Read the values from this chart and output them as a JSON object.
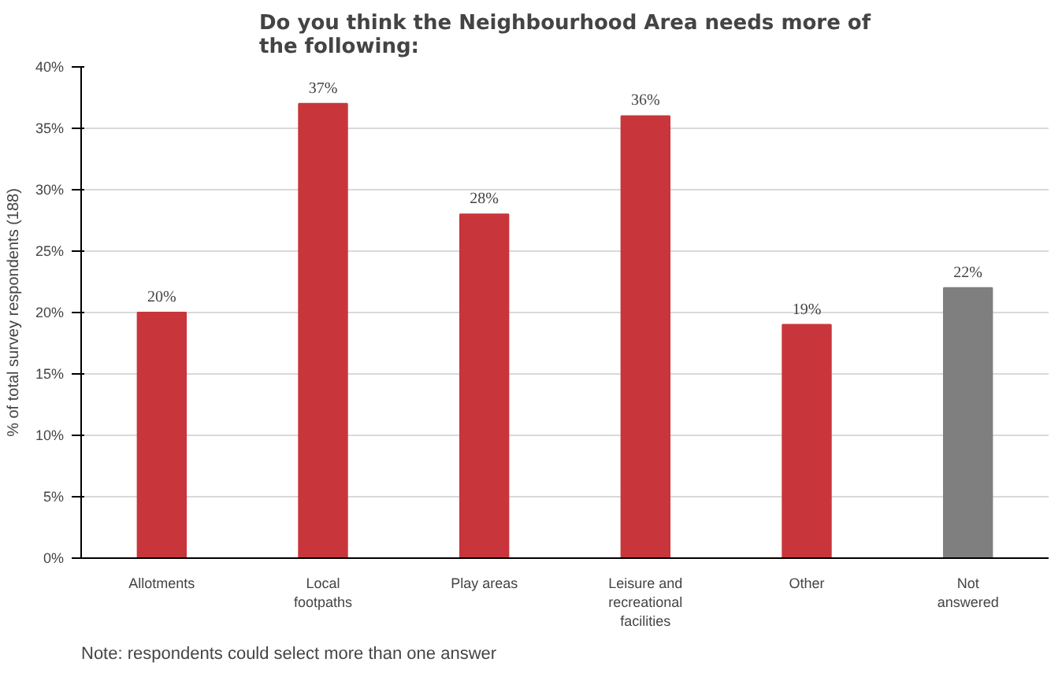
{
  "chart_data": {
    "type": "bar",
    "title": "Do you think the Neighbourhood Area needs more of the following:",
    "ylabel": "% of total survey respondents (188)",
    "categories": [
      "Allotments",
      "Local footpaths",
      "Play areas",
      "Leisure and recreational facilities",
      "Other",
      "Not answered"
    ],
    "values": [
      20,
      37,
      28,
      36,
      19,
      22
    ],
    "value_labels": [
      "20%",
      "37%",
      "28%",
      "36%",
      "19%",
      "22%"
    ],
    "colors": [
      "#c8363b",
      "#c8363b",
      "#c8363b",
      "#c8363b",
      "#c8363b",
      "#7f7f7f"
    ],
    "ylim": [
      0,
      40
    ],
    "yticks": [
      {
        "value": 0,
        "label": "0%"
      },
      {
        "value": 5,
        "label": "5%"
      },
      {
        "value": 10,
        "label": "10%"
      },
      {
        "value": 15,
        "label": "15%"
      },
      {
        "value": 20,
        "label": "20%"
      },
      {
        "value": 25,
        "label": "25%"
      },
      {
        "value": 30,
        "label": "30%"
      },
      {
        "value": 35,
        "label": "35%"
      },
      {
        "value": 40,
        "label": "40%"
      }
    ],
    "grid": "y",
    "annotations": [
      "Note: respondents could select more than one answer"
    ]
  }
}
